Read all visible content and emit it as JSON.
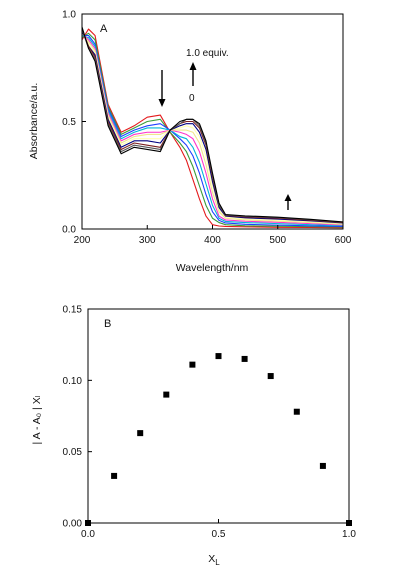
{
  "chart_data": [
    {
      "type": "line",
      "panel_label": "A",
      "xlabel": "Wavelength/nm",
      "ylabel": "Absorbance/a.u.",
      "xlim": [
        200,
        600
      ],
      "ylim": [
        0,
        1.0
      ],
      "x_ticks": [
        "200",
        "300",
        "400",
        "500",
        "600"
      ],
      "y_ticks": [
        "0.0",
        "0.5",
        "1.0"
      ],
      "grid": false,
      "annotations": [
        {
          "text": "1.0 equiv."
        },
        {
          "text": "0"
        }
      ],
      "arrows": [
        "down at 320 nm",
        "up at 370 nm",
        "up at 510 nm"
      ],
      "series_colors": [
        "#e41a1c",
        "#3a9b3a",
        "#1f3fff",
        "#00b5d8",
        "#ff33cc",
        "#f0e68c",
        "#ffffb0",
        "#000080",
        "#7a1f1f",
        "#555555",
        "#000000"
      ],
      "x": [
        200,
        210,
        220,
        240,
        260,
        280,
        300,
        320,
        335,
        350,
        360,
        370,
        380,
        390,
        400,
        410,
        420,
        450,
        500,
        550,
        600
      ],
      "series": [
        {
          "values": [
            0.88,
            0.93,
            0.9,
            0.58,
            0.45,
            0.48,
            0.52,
            0.53,
            0.45,
            0.38,
            0.32,
            0.23,
            0.14,
            0.06,
            0.02,
            0.014,
            0.012,
            0.01,
            0.008,
            0.007,
            0.006
          ]
        },
        {
          "values": [
            0.89,
            0.91,
            0.88,
            0.57,
            0.44,
            0.47,
            0.5,
            0.51,
            0.45,
            0.4,
            0.36,
            0.29,
            0.2,
            0.11,
            0.05,
            0.03,
            0.02,
            0.015,
            0.013,
            0.011,
            0.009
          ]
        },
        {
          "values": [
            0.9,
            0.9,
            0.86,
            0.56,
            0.43,
            0.46,
            0.48,
            0.49,
            0.46,
            0.42,
            0.39,
            0.34,
            0.26,
            0.16,
            0.08,
            0.04,
            0.028,
            0.022,
            0.018,
            0.015,
            0.012
          ]
        },
        {
          "values": [
            0.9,
            0.89,
            0.85,
            0.55,
            0.42,
            0.45,
            0.47,
            0.47,
            0.46,
            0.43,
            0.42,
            0.38,
            0.31,
            0.21,
            0.11,
            0.05,
            0.035,
            0.03,
            0.025,
            0.02,
            0.016
          ]
        },
        {
          "values": [
            0.91,
            0.88,
            0.84,
            0.54,
            0.41,
            0.44,
            0.45,
            0.45,
            0.46,
            0.45,
            0.44,
            0.42,
            0.36,
            0.26,
            0.14,
            0.06,
            0.042,
            0.036,
            0.031,
            0.025,
            0.019
          ]
        },
        {
          "values": [
            0.91,
            0.87,
            0.83,
            0.53,
            0.4,
            0.43,
            0.44,
            0.44,
            0.46,
            0.46,
            0.46,
            0.45,
            0.4,
            0.3,
            0.17,
            0.08,
            0.05,
            0.042,
            0.036,
            0.03,
            0.022
          ]
        },
        {
          "values": [
            0.92,
            0.86,
            0.82,
            0.52,
            0.39,
            0.42,
            0.42,
            0.42,
            0.46,
            0.47,
            0.48,
            0.47,
            0.43,
            0.34,
            0.2,
            0.09,
            0.056,
            0.047,
            0.041,
            0.034,
            0.025
          ]
        },
        {
          "values": [
            0.92,
            0.85,
            0.81,
            0.51,
            0.38,
            0.41,
            0.41,
            0.4,
            0.46,
            0.48,
            0.49,
            0.49,
            0.45,
            0.37,
            0.22,
            0.1,
            0.06,
            0.052,
            0.046,
            0.038,
            0.028
          ]
        },
        {
          "values": [
            0.93,
            0.85,
            0.8,
            0.5,
            0.37,
            0.4,
            0.39,
            0.38,
            0.46,
            0.49,
            0.5,
            0.5,
            0.47,
            0.39,
            0.24,
            0.11,
            0.063,
            0.056,
            0.05,
            0.041,
            0.03
          ]
        },
        {
          "values": [
            0.93,
            0.84,
            0.79,
            0.49,
            0.36,
            0.39,
            0.38,
            0.37,
            0.46,
            0.49,
            0.51,
            0.51,
            0.48,
            0.4,
            0.25,
            0.11,
            0.065,
            0.059,
            0.053,
            0.043,
            0.032
          ]
        },
        {
          "values": [
            0.94,
            0.84,
            0.78,
            0.48,
            0.35,
            0.38,
            0.37,
            0.36,
            0.46,
            0.5,
            0.51,
            0.51,
            0.49,
            0.41,
            0.26,
            0.12,
            0.067,
            0.061,
            0.055,
            0.045,
            0.033
          ]
        }
      ]
    },
    {
      "type": "scatter",
      "panel_label": "B",
      "xlabel": "X",
      "xlabel_sub": "L",
      "ylabel": "| A - A₀ | Xₗ",
      "xlim": [
        0,
        1.0
      ],
      "ylim": [
        0,
        0.15
      ],
      "x_ticks": [
        "0.0",
        "0.5",
        "1.0"
      ],
      "y_ticks": [
        "0.00",
        "0.05",
        "0.10",
        "0.15"
      ],
      "grid": false,
      "x": [
        0.0,
        0.1,
        0.2,
        0.3,
        0.4,
        0.5,
        0.6,
        0.7,
        0.8,
        0.9,
        1.0
      ],
      "values": [
        0.0,
        0.033,
        0.063,
        0.09,
        0.111,
        0.117,
        0.115,
        0.103,
        0.078,
        0.04,
        0.0
      ]
    }
  ]
}
